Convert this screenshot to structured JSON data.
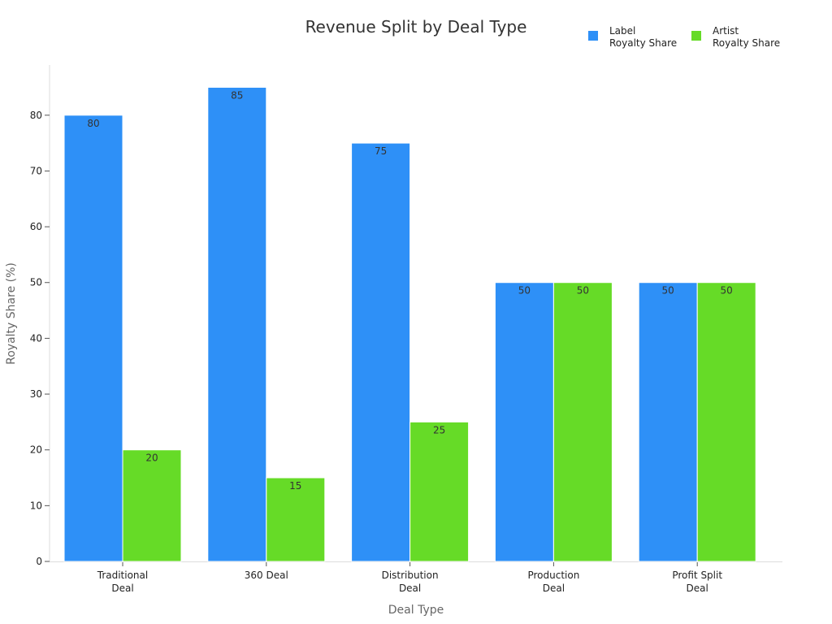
{
  "chart_data": {
    "type": "bar",
    "title": "Revenue Split by Deal Type",
    "xlabel": "Deal Type",
    "ylabel": "Royalty Share (%)",
    "categories": [
      "Traditional\nDeal",
      "360 Deal",
      "Distribution\nDeal",
      "Production\nDeal",
      "Profit Split\nDeal"
    ],
    "series": [
      {
        "name": "Label\nRoyalty Share",
        "color": "#2e90f7",
        "values": [
          80,
          85,
          75,
          50,
          50
        ]
      },
      {
        "name": "Artist\nRoyalty Share",
        "color": "#66db27",
        "values": [
          20,
          15,
          25,
          50,
          50
        ]
      }
    ],
    "ylim": [
      0,
      89
    ],
    "yticks": [
      0,
      10,
      20,
      30,
      40,
      50,
      60,
      70,
      80
    ],
    "grid": false,
    "legend_position": "top-right"
  }
}
